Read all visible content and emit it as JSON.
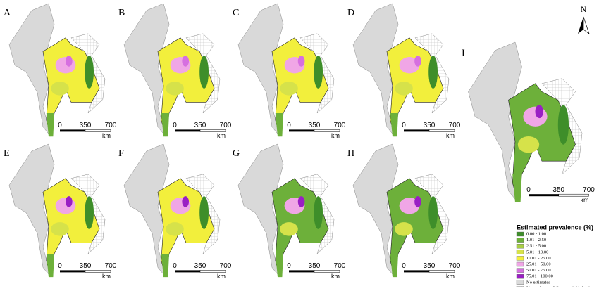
{
  "panels": [
    "A",
    "B",
    "C",
    "D",
    "E",
    "F",
    "G",
    "H",
    "I"
  ],
  "scale_bar": {
    "labels": [
      "0",
      "350",
      "700"
    ],
    "unit": "km"
  },
  "north": "N",
  "legend": {
    "title": "Estimated prevalence (%)",
    "items": [
      {
        "label": "0.00 - 1.00",
        "color": "#3e8e2a"
      },
      {
        "label": "1.01 - 2.50",
        "color": "#6db03a"
      },
      {
        "label": "2.51 - 5.00",
        "color": "#a9cf45"
      },
      {
        "label": "5.01 - 10.00",
        "color": "#d6e24a"
      },
      {
        "label": "10.01 - 25.00",
        "color": "#f2ef3c"
      },
      {
        "label": "25.01 - 50.00",
        "color": "#f0a6e6"
      },
      {
        "label": "50.01 - 75.00",
        "color": "#d66fe0"
      },
      {
        "label": "75.01 - 100.00",
        "color": "#9a1fc4"
      }
    ],
    "no_estimates": {
      "label": "No estimates",
      "color": "#d9d9d9"
    },
    "no_evidence": {
      "parts": [
        "No evidence of ",
        "O. viverrini",
        " infection"
      ]
    }
  }
}
